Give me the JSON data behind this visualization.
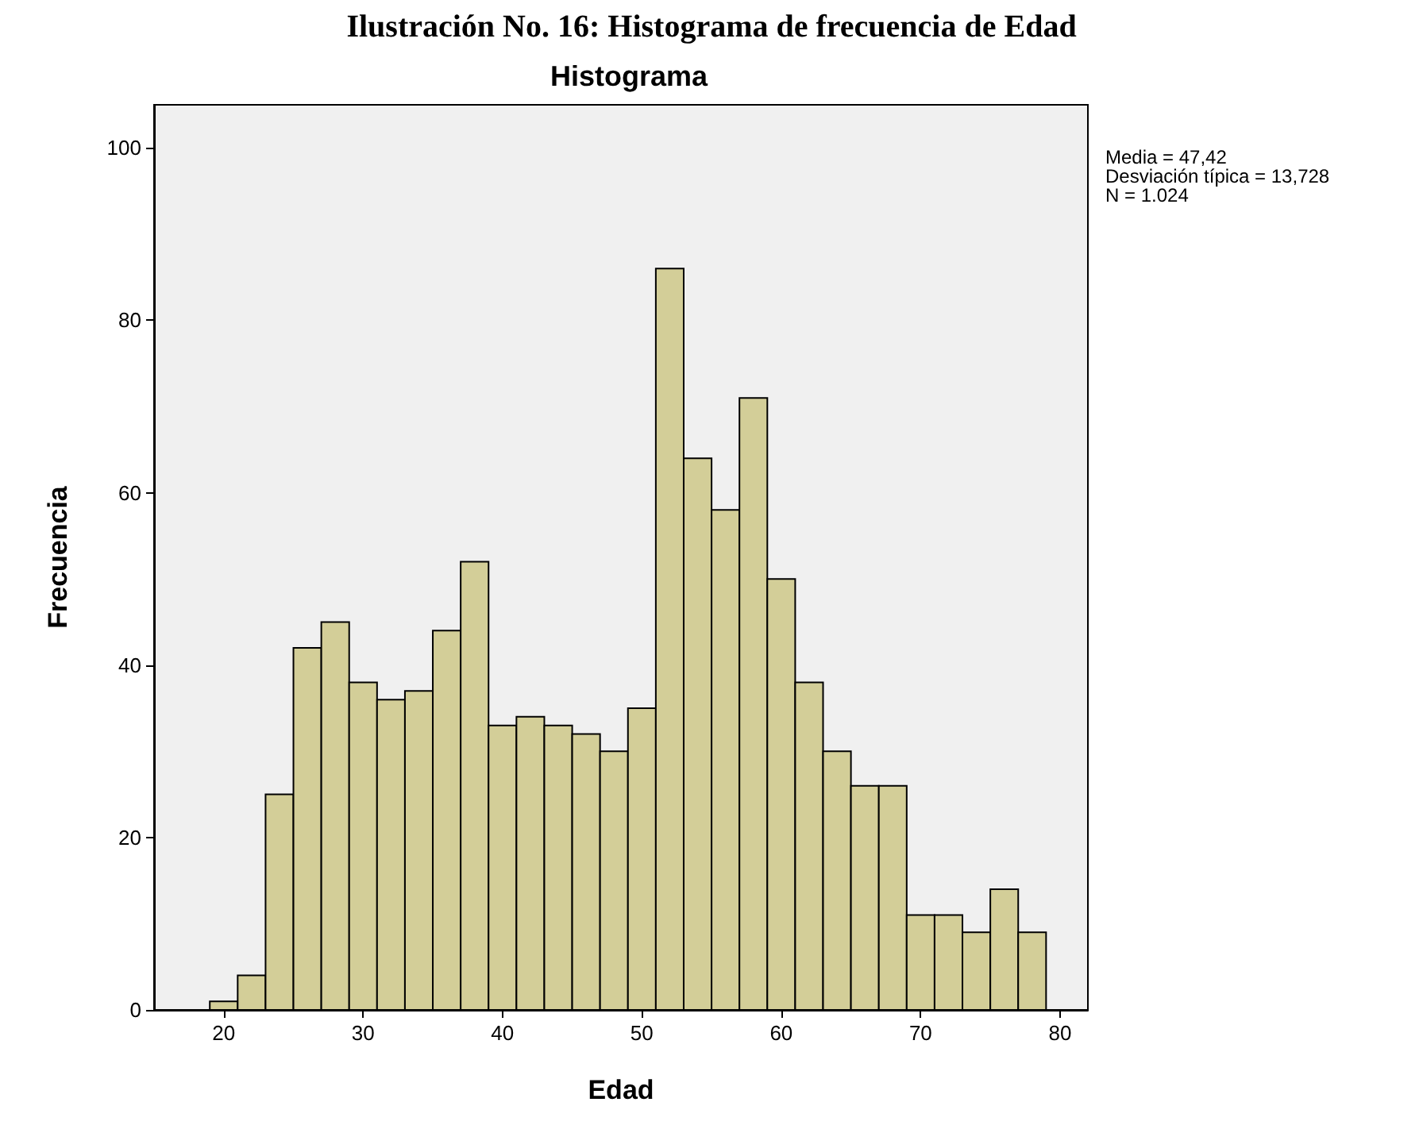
{
  "chart_data": {
    "type": "histogram",
    "title": "Ilustración No. 16: Histograma de frecuencia de Edad",
    "subtitle": "Histograma",
    "xlabel": "Edad",
    "ylabel": "Frecuencia",
    "bins": [
      19,
      21,
      23,
      25,
      27,
      29,
      31,
      33,
      35,
      37,
      39,
      41,
      43,
      45,
      47,
      49,
      51,
      53,
      55,
      57,
      59,
      61,
      63,
      65,
      67,
      69,
      71,
      73,
      75,
      77,
      79
    ],
    "values": [
      1,
      4,
      25,
      42,
      45,
      38,
      36,
      37,
      44,
      52,
      33,
      34,
      33,
      32,
      30,
      35,
      86,
      64,
      58,
      71,
      50,
      38,
      30,
      26,
      26,
      11,
      11,
      9,
      14,
      9
    ],
    "color": "#d3ce98",
    "xlim": [
      15,
      82
    ],
    "xticks": [
      20,
      30,
      40,
      50,
      60,
      70,
      80
    ],
    "ylim": [
      0,
      105
    ],
    "yticks": [
      0,
      20,
      40,
      60,
      80,
      100
    ],
    "grid": false,
    "annotations": [
      "Media = 47,42",
      "Desviación típica = 13,728",
      "N = 1.024"
    ]
  }
}
